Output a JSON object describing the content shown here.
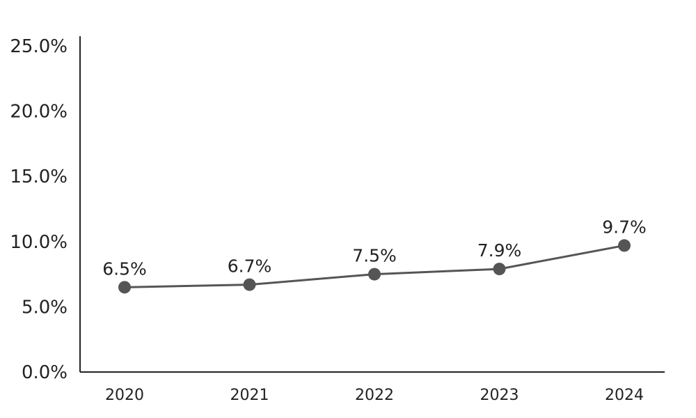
{
  "chart_data": {
    "type": "line",
    "categories": [
      "2020",
      "2021",
      "2022",
      "2023",
      "2024"
    ],
    "series": [
      {
        "values": [
          6.5,
          6.7,
          7.5,
          7.9,
          9.7
        ]
      }
    ],
    "data_labels": [
      "6.5%",
      "6.7%",
      "7.5%",
      "7.9%",
      "9.7%"
    ],
    "y_ticks": [
      0,
      5,
      10,
      15,
      20,
      25
    ],
    "y_tick_labels": [
      "0.0%",
      "5.0%",
      "10.0%",
      "15.0%",
      "20.0%",
      "25.0%"
    ],
    "ylim": [
      0,
      25
    ],
    "grid": false,
    "legend": "none",
    "colors": {
      "line": "#555555",
      "marker": "#555555",
      "axis": "#222222",
      "text": "#222222"
    }
  }
}
